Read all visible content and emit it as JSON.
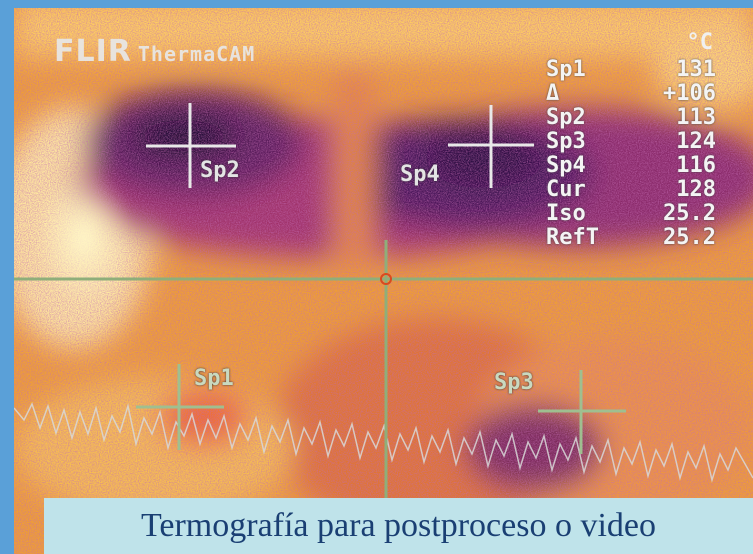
{
  "logo": {
    "brand": "FLIR",
    "model": "ThermaCAM"
  },
  "unit": "°C",
  "readouts": [
    {
      "label": "Sp1",
      "value": "131"
    },
    {
      "label": "Δ",
      "value": "+106"
    },
    {
      "label": "Sp2",
      "value": "113"
    },
    {
      "label": "Sp3",
      "value": "124"
    },
    {
      "label": "Sp4",
      "value": "116"
    },
    {
      "label": "Cur",
      "value": "128"
    },
    {
      "label": "Iso",
      "value": "25.2"
    },
    {
      "label": "RefT",
      "value": "25.2"
    }
  ],
  "spots": {
    "sp1": "Sp1",
    "sp2": "Sp2",
    "sp3": "Sp3",
    "sp4": "Sp4"
  },
  "caption": "Termografía para postproceso o video",
  "colors": {
    "frame": "#5aa0d8",
    "caption_bg": "#bfe3ea",
    "caption_text": "#1a3f73",
    "cursor": "#8fae7a"
  }
}
